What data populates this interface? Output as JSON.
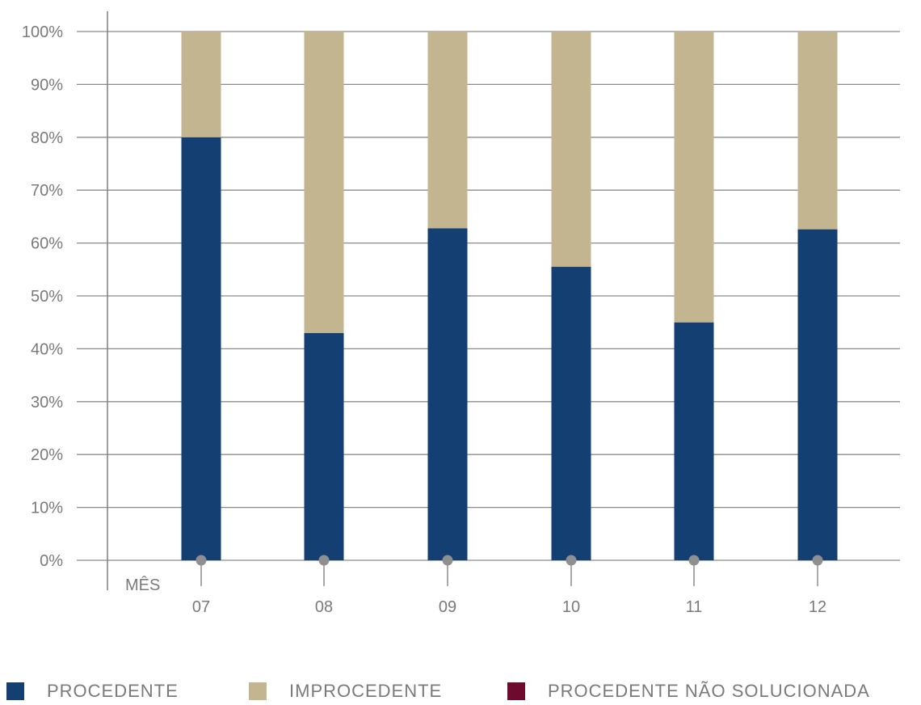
{
  "chart_data": {
    "type": "bar",
    "stacked": true,
    "xlabel": "MÊS",
    "categories": [
      "07",
      "08",
      "09",
      "10",
      "11",
      "12"
    ],
    "y_ticks": [
      "0%",
      "10%",
      "20%",
      "30%",
      "40%",
      "50%",
      "60%",
      "70%",
      "80%",
      "90%",
      "100%"
    ],
    "ylim": [
      0,
      100
    ],
    "grid": true,
    "series": [
      {
        "name": "PROCEDENTE",
        "color": "#133f72",
        "values": [
          80,
          43,
          62.8,
          55.5,
          45,
          62.6
        ]
      },
      {
        "name": "IMPROCEDENTE",
        "color": "#c4b591",
        "values": [
          20,
          57,
          37.2,
          44.5,
          55,
          37.4
        ]
      },
      {
        "name": "PROCEDENTE NÃO SOLUCIONADA",
        "color": "#6d0a2e",
        "values": [
          0,
          0,
          0,
          0,
          0,
          0
        ]
      }
    ],
    "legend_position": "bottom"
  }
}
